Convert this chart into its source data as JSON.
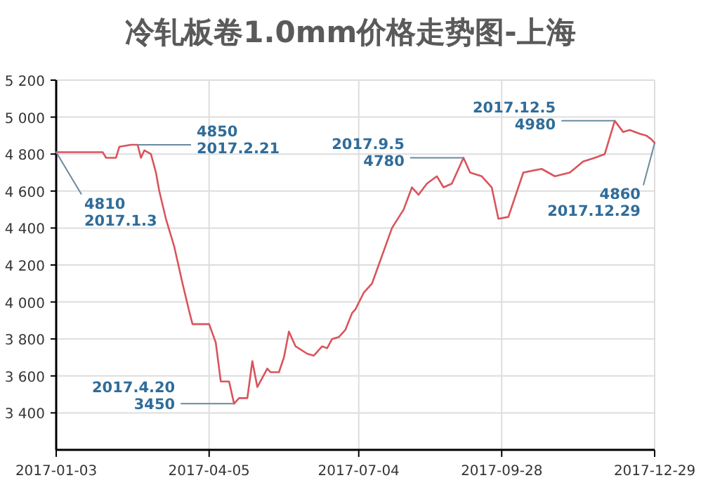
{
  "chart_data": {
    "type": "line",
    "title": "冷轧板卷1.0mm价格走势图-上海",
    "x": [
      "2017-01-03",
      "2017-01-31",
      "2017-02-02",
      "2017-02-08",
      "2017-02-10",
      "2017-02-17",
      "2017-02-21",
      "2017-02-23",
      "2017-02-25",
      "2017-03-01",
      "2017-03-04",
      "2017-03-06",
      "2017-03-10",
      "2017-03-15",
      "2017-03-20",
      "2017-03-24",
      "2017-03-26",
      "2017-04-05",
      "2017-04-09",
      "2017-04-12",
      "2017-04-17",
      "2017-04-20",
      "2017-04-23",
      "2017-04-28",
      "2017-05-01",
      "2017-05-04",
      "2017-05-10",
      "2017-05-12",
      "2017-05-17",
      "2017-05-20",
      "2017-05-23",
      "2017-05-27",
      "2017-06-03",
      "2017-06-07",
      "2017-06-12",
      "2017-06-15",
      "2017-06-18",
      "2017-06-22",
      "2017-06-26",
      "2017-06-30",
      "2017-07-02",
      "2017-07-07",
      "2017-07-12",
      "2017-07-16",
      "2017-07-24",
      "2017-07-31",
      "2017-08-05",
      "2017-08-09",
      "2017-08-14",
      "2017-08-20",
      "2017-08-24",
      "2017-08-29",
      "2017-09-05",
      "2017-09-09",
      "2017-09-16",
      "2017-09-22",
      "2017-09-26",
      "2017-10-02",
      "2017-10-08",
      "2017-10-11",
      "2017-10-22",
      "2017-10-30",
      "2017-11-08",
      "2017-11-16",
      "2017-11-23",
      "2017-11-29",
      "2017-12-05",
      "2017-12-10",
      "2017-12-14",
      "2017-12-20",
      "2017-12-24",
      "2017-12-27",
      "2017-12-29"
    ],
    "series": [
      {
        "color": "#d9545c",
        "values": [
          4810,
          4810,
          4780,
          4780,
          4840,
          4850,
          4850,
          4780,
          4820,
          4800,
          4700,
          4600,
          4450,
          4300,
          4100,
          3950,
          3880,
          3880,
          3780,
          3570,
          3570,
          3450,
          3480,
          3480,
          3680,
          3540,
          3640,
          3620,
          3620,
          3700,
          3840,
          3760,
          3720,
          3710,
          3760,
          3750,
          3800,
          3810,
          3850,
          3940,
          3960,
          4050,
          4100,
          4200,
          4400,
          4500,
          4620,
          4580,
          4640,
          4680,
          4620,
          4640,
          4780,
          4700,
          4680,
          4620,
          4450,
          4460,
          4620,
          4700,
          4720,
          4680,
          4700,
          4760,
          4780,
          4800,
          4980,
          4920,
          4930,
          4910,
          4900,
          4880,
          4860
        ]
      }
    ],
    "xlim": [
      "2017-01-03",
      "2017-12-29"
    ],
    "xticks": [
      {
        "value": "2017-01-03",
        "label": "2017-01-03"
      },
      {
        "value": "2017-04-05",
        "label": "2017-04-05"
      },
      {
        "value": "2017-07-04",
        "label": "2017-07-04"
      },
      {
        "value": "2017-09-28",
        "label": "2017-09-28"
      },
      {
        "value": "2017-12-29",
        "label": "2017-12-29"
      }
    ],
    "ylim": [
      3200,
      5200
    ],
    "yticks": [
      {
        "value": 3400,
        "label": "3 400"
      },
      {
        "value": 3600,
        "label": "3 600"
      },
      {
        "value": 3800,
        "label": "3 800"
      },
      {
        "value": 4000,
        "label": "4 000"
      },
      {
        "value": 4200,
        "label": "4 200"
      },
      {
        "value": 4400,
        "label": "4 400"
      },
      {
        "value": 4600,
        "label": "4 600"
      },
      {
        "value": 4800,
        "label": "4 800"
      },
      {
        "value": 5000,
        "label": "5 000"
      },
      {
        "value": 5200,
        "label": "5 200"
      }
    ],
    "grid": true,
    "annotations": [
      {
        "text": "4810\n2017.1.3",
        "x": "2017-01-03",
        "y": 4810
      },
      {
        "text": "4850\n2017.2.21",
        "x": "2017-02-21",
        "y": 4850
      },
      {
        "text": "2017.4.20\n3450",
        "x": "2017-04-20",
        "y": 3450
      },
      {
        "text": "2017.9.5\n4780",
        "x": "2017-09-05",
        "y": 4780
      },
      {
        "text": "2017.12.5\n4980",
        "x": "2017-12-05",
        "y": 4980
      },
      {
        "text": "4860\n2017.12.29",
        "x": "2017-12-29",
        "y": 4860
      }
    ]
  }
}
